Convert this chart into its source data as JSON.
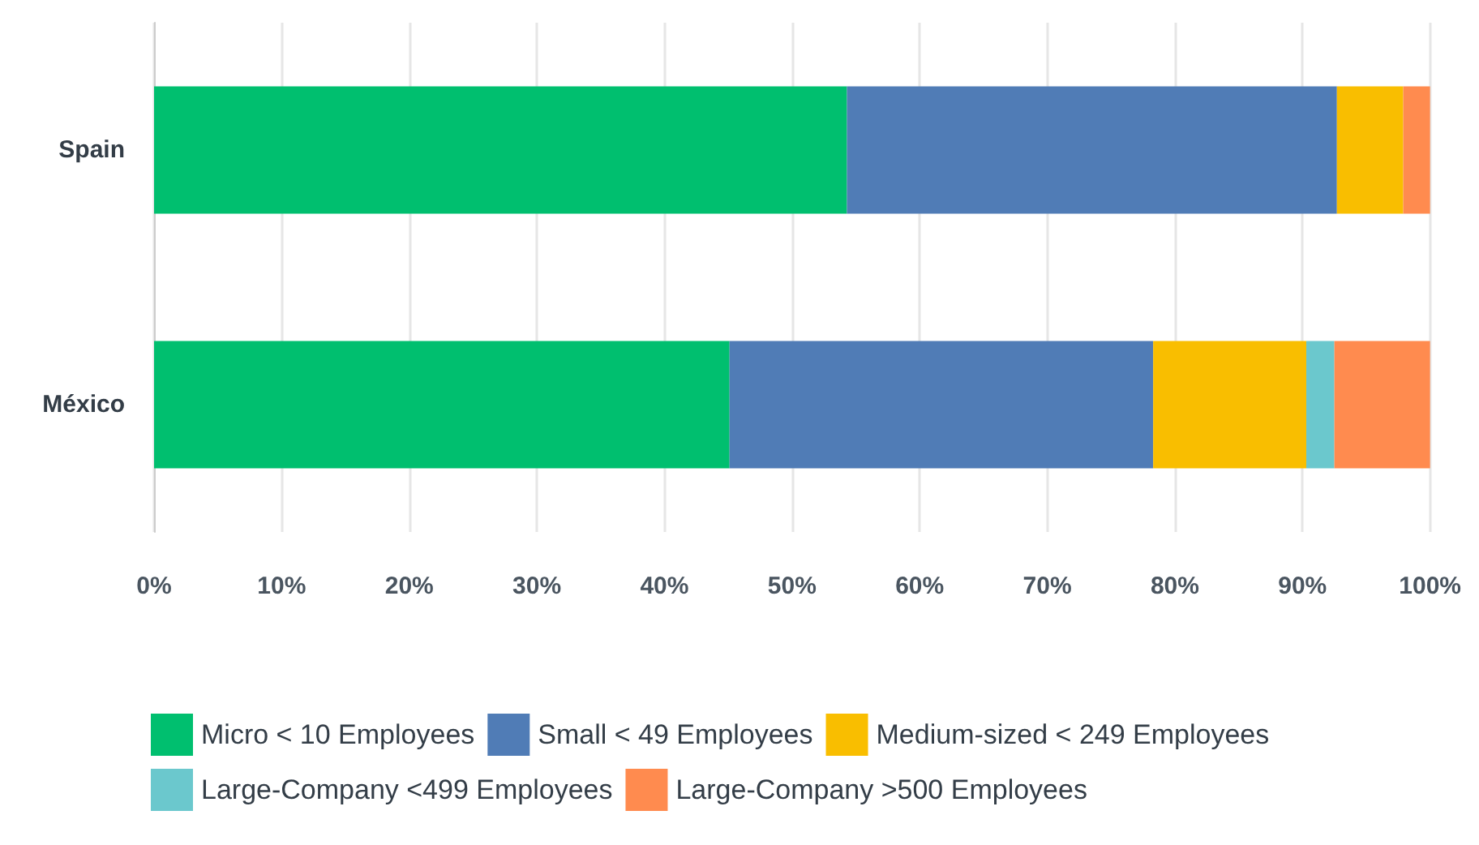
{
  "chart_data": {
    "type": "bar",
    "orientation": "horizontal",
    "stacked": true,
    "categories": [
      "Spain",
      "México"
    ],
    "series": [
      {
        "name": "Micro < 10 Employees",
        "color": "#00bf6f",
        "values": [
          54.3,
          45.1
        ]
      },
      {
        "name": "Small < 49 Employees",
        "color": "#507cb6",
        "values": [
          38.4,
          33.2
        ]
      },
      {
        "name": "Medium-sized < 249 Employees",
        "color": "#f9be00",
        "values": [
          5.2,
          12.0
        ]
      },
      {
        "name": "Large-Company <499 Employees",
        "color": "#6bc8cd",
        "values": [
          0,
          2.2
        ]
      },
      {
        "name": "Large-Company >500 Employees",
        "color": "#ff8b4f",
        "values": [
          2.1,
          7.5
        ]
      }
    ],
    "xlim": [
      0,
      100
    ],
    "xticks": [
      {
        "value": 0,
        "label": "0%"
      },
      {
        "value": 10,
        "label": "10%"
      },
      {
        "value": 20,
        "label": "20%"
      },
      {
        "value": 30,
        "label": "30%"
      },
      {
        "value": 40,
        "label": "40%"
      },
      {
        "value": 50,
        "label": "50%"
      },
      {
        "value": 60,
        "label": "60%"
      },
      {
        "value": 70,
        "label": "70%"
      },
      {
        "value": 80,
        "label": "80%"
      },
      {
        "value": 90,
        "label": "90%"
      },
      {
        "value": 100,
        "label": "100%"
      }
    ],
    "grid": "x",
    "legend": "bottom"
  }
}
